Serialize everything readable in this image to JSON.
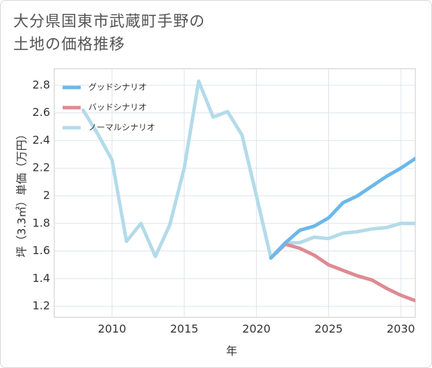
{
  "title_lines": [
    "大分県国東市武蔵町手野の",
    "土地の価格推移"
  ],
  "chart_data": {
    "type": "line",
    "xlabel": "年",
    "ylabel": "坪（3.3㎡）単価（万円）",
    "xlim": [
      2006,
      2031
    ],
    "ylim": [
      1.12,
      2.92
    ],
    "xticks": [
      2010,
      2015,
      2020,
      2025,
      2030
    ],
    "yticks": [
      1.2,
      1.4,
      1.6,
      1.8,
      2.0,
      2.2,
      2.4,
      2.6,
      2.8
    ],
    "ytick_labels": [
      "1.2",
      "1.4",
      "1.6",
      "1.8",
      "2",
      "2.2",
      "2.4",
      "2.6",
      "2.8"
    ],
    "grid": true,
    "legend_position": "top-left",
    "series": [
      {
        "name": "グッドシナリオ",
        "color": "#6cb8ea",
        "x": [
          2021,
          2022,
          2023,
          2024,
          2025,
          2026,
          2027,
          2028,
          2029,
          2030,
          2031
        ],
        "values": [
          1.55,
          1.66,
          1.75,
          1.78,
          1.84,
          1.95,
          2.0,
          2.07,
          2.14,
          2.2,
          2.27
        ]
      },
      {
        "name": "バッドシナリオ",
        "color": "#dd8b93",
        "x": [
          2021,
          2022,
          2023,
          2024,
          2025,
          2026,
          2027,
          2028,
          2029,
          2030,
          2031
        ],
        "values": [
          1.55,
          1.65,
          1.62,
          1.57,
          1.5,
          1.46,
          1.42,
          1.39,
          1.33,
          1.28,
          1.24
        ]
      },
      {
        "name": "ノーマルシナリオ",
        "color": "#b3dbea",
        "x": [
          2008,
          2009,
          2010,
          2011,
          2012,
          2013,
          2014,
          2015,
          2016,
          2017,
          2018,
          2019,
          2020,
          2021,
          2022,
          2023,
          2024,
          2025,
          2026,
          2027,
          2028,
          2029,
          2030,
          2031
        ],
        "values": [
          2.62,
          2.45,
          2.26,
          1.67,
          1.8,
          1.56,
          1.79,
          2.2,
          2.83,
          2.57,
          2.61,
          2.44,
          2.0,
          1.55,
          1.66,
          1.66,
          1.7,
          1.69,
          1.73,
          1.74,
          1.76,
          1.77,
          1.8,
          1.8
        ]
      }
    ]
  }
}
